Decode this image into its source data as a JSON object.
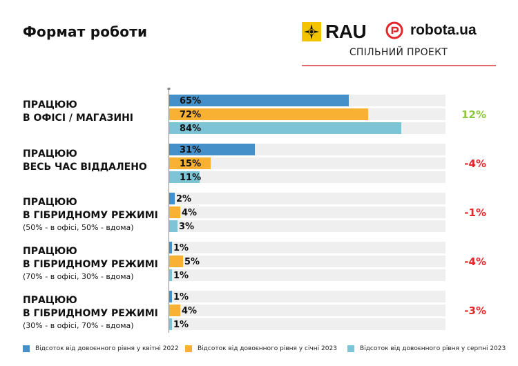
{
  "header": {
    "title": "Формат роботи",
    "logo_rau": "RAU",
    "logo_robota": "robota.ua",
    "subtitle": "СПІЛЬНИЙ ПРОЕКТ"
  },
  "colors": {
    "series_1": "#4590c8",
    "series_2": "#f8b133",
    "series_3": "#7cc4d6",
    "track": "#efefef",
    "positive": "#8cc63f",
    "negative": "#e3262a"
  },
  "chart_data": {
    "type": "bar",
    "orientation": "horizontal",
    "xlim": [
      0,
      100
    ],
    "categories": [
      {
        "lines": [
          "ПРАЦЮЮ",
          "В ОФІСІ / МАГАЗИНІ"
        ],
        "note": "",
        "change": "12%",
        "change_sign": "positive"
      },
      {
        "lines": [
          "ПРАЦЮЮ",
          "ВЕСЬ ЧАС ВІДДАЛЕНО"
        ],
        "note": "",
        "change": "-4%",
        "change_sign": "negative"
      },
      {
        "lines": [
          "ПРАЦЮЮ",
          "В ГІБРИДНОМУ РЕЖИМІ"
        ],
        "note": "(50% - в офісі, 50% - вдома)",
        "change": "-1%",
        "change_sign": "negative"
      },
      {
        "lines": [
          "ПРАЦЮЮ",
          "В ГІБРИДНОМУ РЕЖИМІ"
        ],
        "note": "(70% - в офісі, 30% - вдома)",
        "change": "-4%",
        "change_sign": "negative"
      },
      {
        "lines": [
          "ПРАЦЮЮ",
          "В ГІБРИДНОМУ РЕЖИМІ"
        ],
        "note": "(30% - в офісі, 70% - вдома)",
        "change": "-3%",
        "change_sign": "negative"
      }
    ],
    "series": [
      {
        "name": "Відсоток від довоєнного рівня у квітні 2022",
        "values": [
          65,
          31,
          2,
          1,
          1
        ],
        "labels": [
          "65%",
          "31%",
          "2%",
          "1%",
          "1%"
        ]
      },
      {
        "name": "Відсоток від довоєнного рівня у січні 2023",
        "values": [
          72,
          15,
          4,
          5,
          4
        ],
        "labels": [
          "72%",
          "15%",
          "4%",
          "5%",
          "4%"
        ]
      },
      {
        "name": "Відсоток від довоєнного рівня у серпні 2023",
        "values": [
          84,
          11,
          3,
          1,
          1
        ],
        "labels": [
          "84%",
          "11%",
          "3%",
          "1%",
          "1%"
        ]
      }
    ],
    "legend_position": "bottom",
    "grid": false
  }
}
